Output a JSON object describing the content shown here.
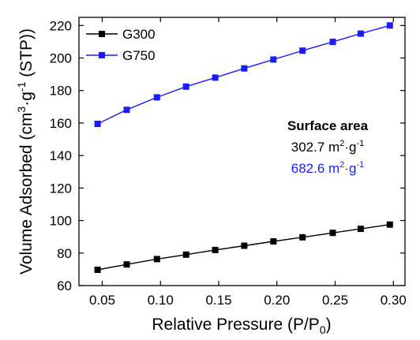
{
  "chart_data": {
    "type": "line",
    "xlabel": {
      "main": "Relative Pressure (P/P",
      "sub": "0",
      "end": ")"
    },
    "ylabel": {
      "a": "Volume Adsorbed (cm",
      "sup1": "3",
      "b": "·g",
      "sup2": "-1",
      "c": " (STP))"
    },
    "xlim": [
      0.03,
      0.31
    ],
    "ylim": [
      60,
      225
    ],
    "x_ticks": [
      0.05,
      0.1,
      0.15,
      0.2,
      0.25,
      0.3
    ],
    "x_tick_labels": [
      "0.05",
      "0.10",
      "0.15",
      "0.20",
      "0.25",
      "0.30"
    ],
    "y_ticks": [
      60,
      80,
      100,
      120,
      140,
      160,
      180,
      200,
      220
    ],
    "y_tick_labels": [
      "60",
      "80",
      "100",
      "120",
      "140",
      "160",
      "180",
      "200",
      "220"
    ],
    "legend_position": "top-left",
    "series": [
      {
        "name": "G300",
        "color": "#000000",
        "marker": "square",
        "x": [
          0.046,
          0.071,
          0.097,
          0.122,
          0.147,
          0.172,
          0.197,
          0.222,
          0.248,
          0.272,
          0.297
        ],
        "y": [
          69.7,
          73.0,
          76.3,
          79.0,
          81.9,
          84.5,
          87.2,
          89.7,
          92.4,
          94.9,
          97.5
        ]
      },
      {
        "name": "G750",
        "color": "#1a1aff",
        "marker": "square",
        "x": [
          0.046,
          0.071,
          0.097,
          0.122,
          0.147,
          0.172,
          0.197,
          0.222,
          0.248,
          0.272,
          0.297
        ],
        "y": [
          159.5,
          168.1,
          175.8,
          182.4,
          187.9,
          193.6,
          199.1,
          204.5,
          209.9,
          215.0,
          220.0
        ]
      }
    ],
    "annotations": {
      "title": "Surface area",
      "lines": [
        {
          "value": "302.7 m",
          "sup1": "2",
          "mid": "·g",
          "sup2": "-1",
          "color": "#000000"
        },
        {
          "value": "682.6 m",
          "sup1": "2",
          "mid": "·g",
          "sup2": "-1",
          "color": "#1a1aff"
        }
      ]
    }
  }
}
